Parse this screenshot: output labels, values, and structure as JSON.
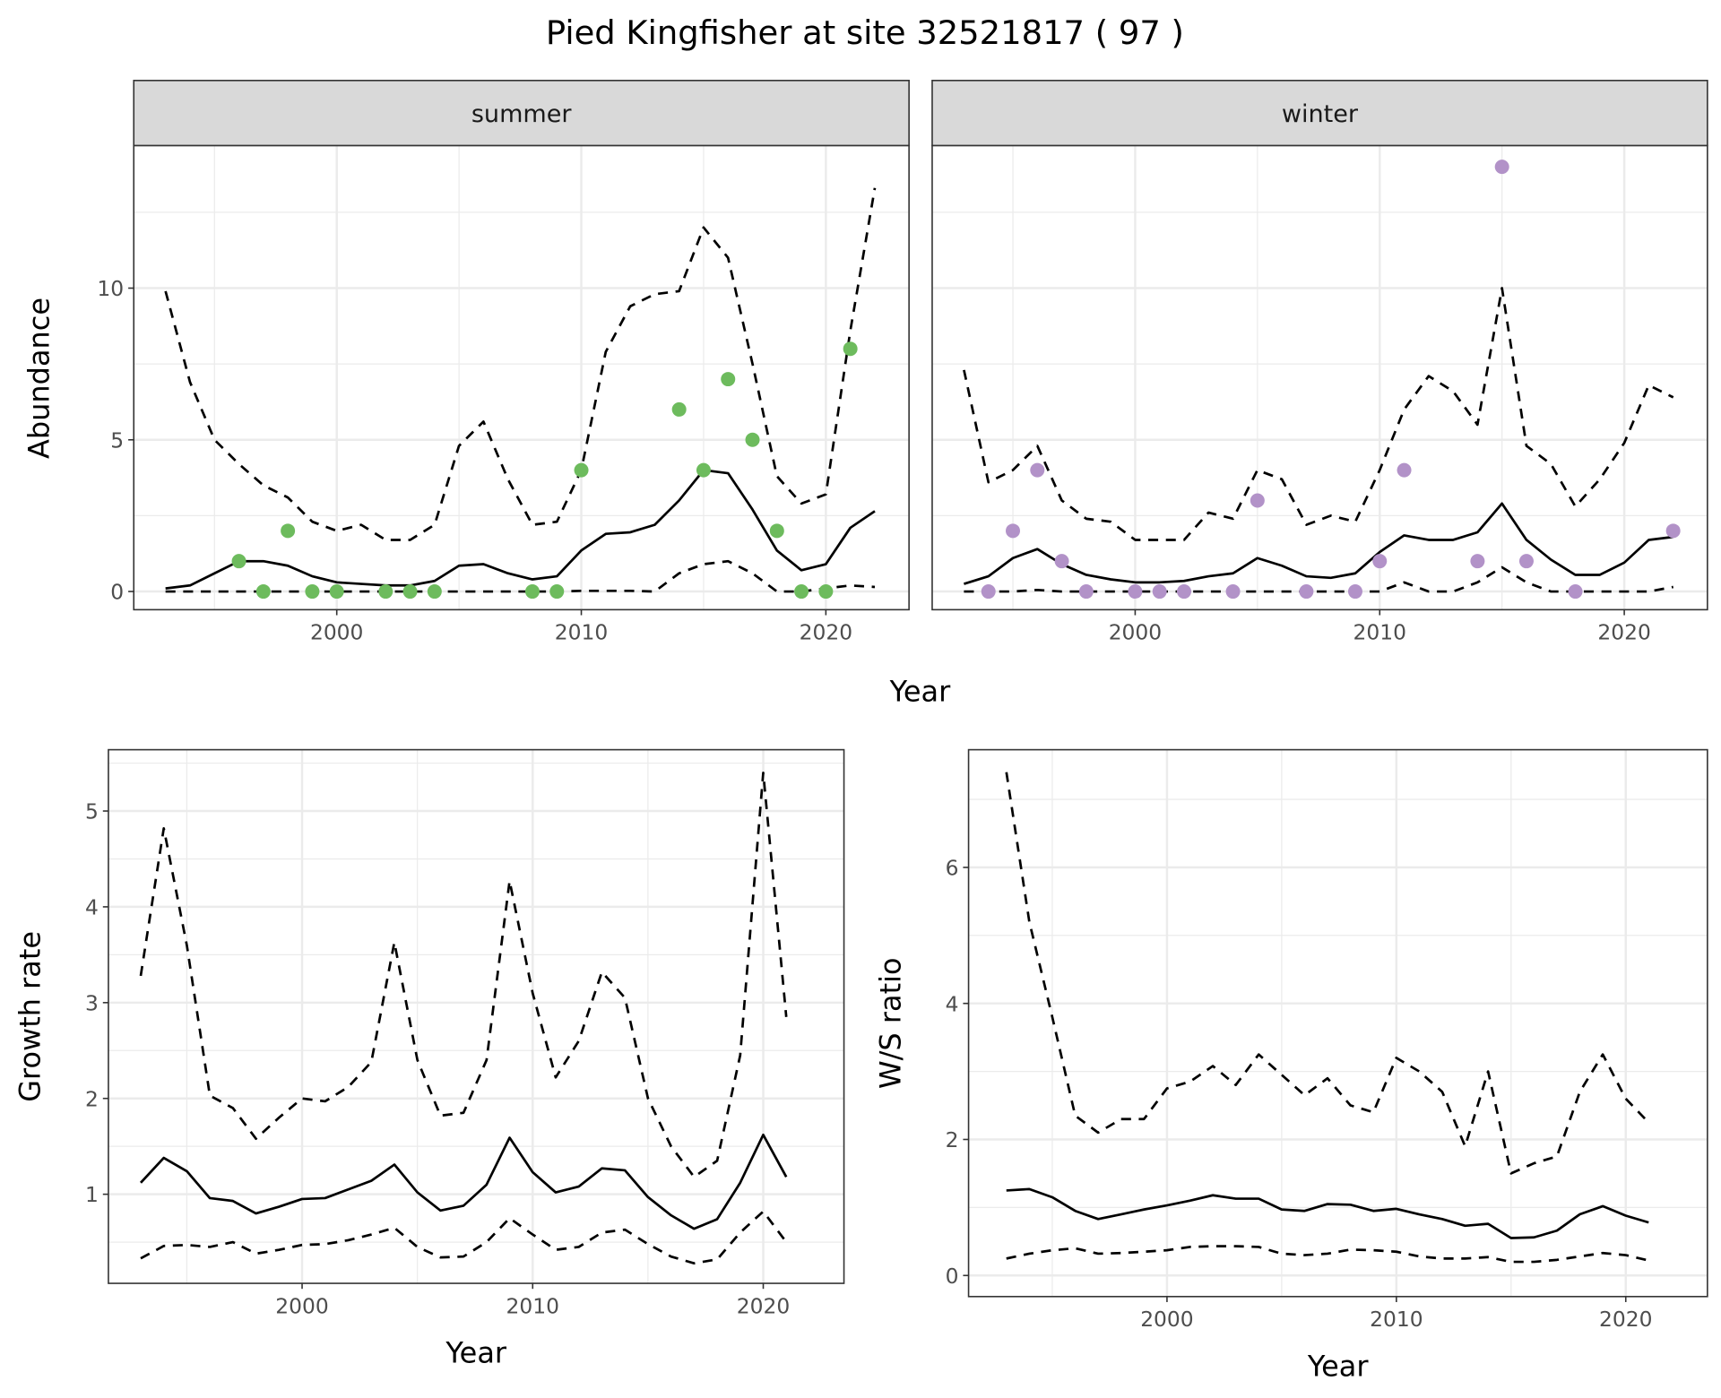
{
  "title": "Pied Kingfisher at site 32521817 ( 97 )",
  "chart_data": [
    {
      "type": "line",
      "facet": "summer",
      "xlabel": "Year",
      "ylabel": "Abundance",
      "xlim": [
        1991.7,
        2023.4
      ],
      "ylim": [
        -0.6,
        14.7
      ],
      "xticks": [
        2000,
        2010,
        2020
      ],
      "yticks": [
        0,
        5,
        10
      ],
      "grid": true,
      "point_color": "#6dbb5d",
      "x": [
        1993,
        1994,
        1995,
        1996,
        1997,
        1998,
        1999,
        2000,
        2001,
        2002,
        2003,
        2004,
        2005,
        2006,
        2007,
        2008,
        2009,
        2010,
        2011,
        2012,
        2013,
        2014,
        2015,
        2016,
        2017,
        2018,
        2019,
        2020,
        2021,
        2022
      ],
      "series": [
        {
          "style": "solid",
          "values": [
            0.1,
            0.2,
            0.6,
            1.0,
            1.0,
            0.85,
            0.5,
            0.3,
            0.25,
            0.2,
            0.2,
            0.35,
            0.85,
            0.9,
            0.6,
            0.4,
            0.5,
            1.35,
            1.9,
            1.95,
            2.2,
            3.0,
            4.0,
            3.9,
            2.7,
            1.35,
            0.7,
            0.9,
            2.1,
            2.65
          ]
        },
        {
          "style": "dashed",
          "values": [
            9.9,
            6.9,
            5.0,
            4.2,
            3.5,
            3.1,
            2.3,
            2.0,
            2.2,
            1.7,
            1.7,
            2.2,
            4.8,
            5.6,
            3.7,
            2.2,
            2.3,
            4.0,
            7.9,
            9.4,
            9.8,
            9.9,
            12.0,
            11.0,
            7.5,
            3.8,
            2.9,
            3.2,
            8.6,
            13.3
          ]
        },
        {
          "style": "dashed",
          "values": [
            0,
            0,
            0,
            0,
            0,
            0,
            0,
            0,
            0,
            0,
            0,
            0,
            0,
            0,
            0,
            0,
            0,
            0.02,
            0.02,
            0.02,
            0,
            0.6,
            0.9,
            1.0,
            0.6,
            0,
            0,
            0.1,
            0.2,
            0.15
          ]
        }
      ],
      "points": {
        "x": [
          1996,
          1997,
          1998,
          1999,
          2000,
          2002,
          2003,
          2004,
          2008,
          2009,
          2010,
          2014,
          2015,
          2016,
          2017,
          2018,
          2019,
          2020,
          2021
        ],
        "y": [
          1,
          0,
          2,
          0,
          0,
          0,
          0,
          0,
          0,
          0,
          4,
          6,
          4,
          7,
          5,
          2,
          0,
          0,
          8
        ]
      }
    },
    {
      "type": "line",
      "facet": "winter",
      "xlabel": "Year",
      "ylabel": "Abundance",
      "xlim": [
        1991.7,
        2023.4
      ],
      "ylim": [
        -0.6,
        14.7
      ],
      "xticks": [
        2000,
        2010,
        2020
      ],
      "yticks": [
        0,
        5,
        10
      ],
      "grid": true,
      "point_color": "#b292c8",
      "x": [
        1993,
        1994,
        1995,
        1996,
        1997,
        1998,
        1999,
        2000,
        2001,
        2002,
        2003,
        2004,
        2005,
        2006,
        2007,
        2008,
        2009,
        2010,
        2011,
        2012,
        2013,
        2014,
        2015,
        2016,
        2017,
        2018,
        2019,
        2020,
        2021,
        2022
      ],
      "series": [
        {
          "style": "solid",
          "values": [
            0.25,
            0.5,
            1.1,
            1.4,
            0.9,
            0.55,
            0.4,
            0.3,
            0.3,
            0.35,
            0.5,
            0.6,
            1.1,
            0.85,
            0.5,
            0.45,
            0.6,
            1.3,
            1.85,
            1.7,
            1.7,
            1.95,
            2.9,
            1.7,
            1.05,
            0.55,
            0.55,
            0.95,
            1.7,
            1.8
          ]
        },
        {
          "style": "dashed",
          "values": [
            7.3,
            3.6,
            4.0,
            4.8,
            3.0,
            2.4,
            2.3,
            1.7,
            1.7,
            1.7,
            2.6,
            2.4,
            4.0,
            3.7,
            2.2,
            2.5,
            2.3,
            4.0,
            6.0,
            7.1,
            6.6,
            5.5,
            10.0,
            4.8,
            4.2,
            2.8,
            3.7,
            4.9,
            6.8,
            6.4
          ]
        },
        {
          "style": "dashed",
          "values": [
            0,
            0,
            0,
            0.05,
            0,
            0,
            0,
            0,
            0,
            0,
            0,
            0,
            0,
            0,
            0,
            0,
            0,
            0,
            0.3,
            0,
            0,
            0.3,
            0.8,
            0.3,
            0,
            0,
            0,
            0,
            0,
            0.15
          ]
        }
      ],
      "points": {
        "x": [
          1994,
          1995,
          1996,
          1997,
          1998,
          2000,
          2001,
          2002,
          2004,
          2005,
          2007,
          2009,
          2010,
          2011,
          2014,
          2015,
          2016,
          2018,
          2022
        ],
        "y": [
          0,
          2,
          4,
          1,
          0,
          0,
          0,
          0,
          0,
          3,
          0,
          0,
          1,
          4,
          1,
          14,
          1,
          0,
          2
        ]
      }
    },
    {
      "type": "line",
      "xlabel": "Year",
      "ylabel": "Growth rate",
      "xlim": [
        1991.6,
        2023.5
      ],
      "ylim": [
        0.07,
        5.64
      ],
      "xticks": [
        2000,
        2010,
        2020
      ],
      "yticks": [
        1,
        2,
        3,
        4,
        5
      ],
      "grid": true,
      "x": [
        1993,
        1994,
        1995,
        1996,
        1997,
        1998,
        1999,
        2000,
        2001,
        2002,
        2003,
        2004,
        2005,
        2006,
        2007,
        2008,
        2009,
        2010,
        2011,
        2012,
        2013,
        2014,
        2015,
        2016,
        2017,
        2018,
        2019,
        2020,
        2021
      ],
      "series": [
        {
          "style": "solid",
          "values": [
            1.12,
            1.38,
            1.24,
            0.96,
            0.93,
            0.8,
            0.87,
            0.95,
            0.96,
            1.05,
            1.14,
            1.31,
            1.02,
            0.83,
            0.88,
            1.1,
            1.59,
            1.23,
            1.02,
            1.08,
            1.27,
            1.25,
            0.97,
            0.78,
            0.64,
            0.74,
            1.12,
            1.62,
            1.18
          ]
        },
        {
          "style": "dashed",
          "values": [
            3.28,
            4.82,
            3.6,
            2.03,
            1.9,
            1.58,
            1.8,
            2.0,
            1.97,
            2.12,
            2.38,
            3.63,
            2.4,
            1.82,
            1.85,
            2.4,
            4.27,
            3.1,
            2.22,
            2.6,
            3.32,
            3.05,
            2.0,
            1.5,
            1.18,
            1.35,
            2.45,
            5.4,
            2.85
          ]
        },
        {
          "style": "dashed",
          "values": [
            0.33,
            0.46,
            0.47,
            0.45,
            0.5,
            0.38,
            0.42,
            0.47,
            0.48,
            0.52,
            0.58,
            0.65,
            0.45,
            0.34,
            0.35,
            0.5,
            0.75,
            0.58,
            0.42,
            0.45,
            0.6,
            0.63,
            0.48,
            0.35,
            0.28,
            0.32,
            0.6,
            0.82,
            0.5
          ]
        }
      ]
    },
    {
      "type": "line",
      "xlabel": "Year",
      "ylabel": "W/S ratio",
      "xlim": [
        1991.35,
        2023.56
      ],
      "ylim": [
        -0.31,
        7.73
      ],
      "xticks": [
        2000,
        2010,
        2020
      ],
      "yticks": [
        0,
        2,
        4,
        6
      ],
      "grid": true,
      "x": [
        1993,
        1994,
        1995,
        1996,
        1997,
        1998,
        1999,
        2000,
        2001,
        2002,
        2003,
        2004,
        2005,
        2006,
        2007,
        2008,
        2009,
        2010,
        2011,
        2012,
        2013,
        2014,
        2015,
        2016,
        2017,
        2018,
        2019,
        2020,
        2021
      ],
      "series": [
        {
          "style": "solid",
          "values": [
            1.25,
            1.27,
            1.15,
            0.95,
            0.83,
            0.9,
            0.97,
            1.03,
            1.1,
            1.18,
            1.13,
            1.13,
            0.97,
            0.95,
            1.05,
            1.04,
            0.95,
            0.98,
            0.9,
            0.83,
            0.73,
            0.76,
            0.55,
            0.56,
            0.66,
            0.9,
            1.02,
            0.88,
            0.78
          ]
        },
        {
          "style": "dashed",
          "values": [
            7.4,
            5.2,
            3.8,
            2.35,
            2.1,
            2.3,
            2.3,
            2.75,
            2.85,
            3.08,
            2.8,
            3.25,
            2.95,
            2.65,
            2.9,
            2.5,
            2.4,
            3.2,
            3.0,
            2.7,
            1.9,
            3.0,
            1.5,
            1.65,
            1.75,
            2.7,
            3.25,
            2.6,
            2.25
          ]
        },
        {
          "style": "dashed",
          "values": [
            0.25,
            0.32,
            0.37,
            0.4,
            0.32,
            0.33,
            0.35,
            0.37,
            0.42,
            0.43,
            0.43,
            0.42,
            0.32,
            0.3,
            0.32,
            0.38,
            0.37,
            0.35,
            0.28,
            0.25,
            0.25,
            0.27,
            0.2,
            0.2,
            0.23,
            0.28,
            0.33,
            0.3,
            0.22
          ]
        }
      ]
    }
  ]
}
